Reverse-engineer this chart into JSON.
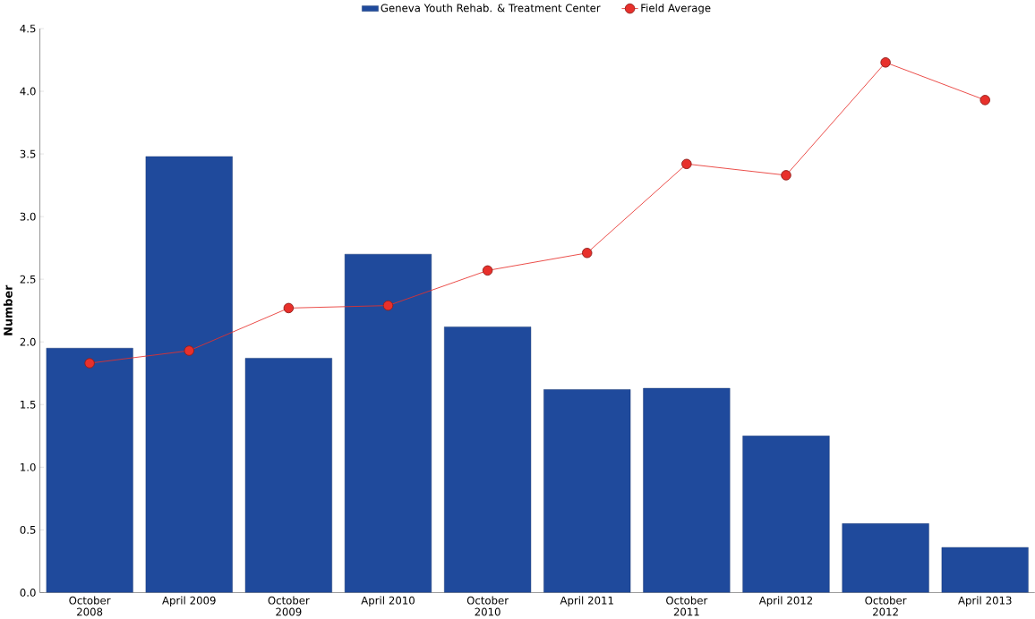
{
  "chart_data": {
    "type": "bar",
    "ylabel": "Number",
    "categories": [
      "October 2008",
      "April 2009",
      "October 2009",
      "April 2010",
      "October 2010",
      "April 2011",
      "October 2011",
      "April 2012",
      "October 2012",
      "April 2013"
    ],
    "series": [
      {
        "name": "Geneva Youth Rehab. & Treatment Center",
        "color": "#1f4a9c",
        "values": [
          1.95,
          3.48,
          1.87,
          2.7,
          2.12,
          1.62,
          1.63,
          1.25,
          0.55,
          0.36
        ]
      },
      {
        "name": "Field Average",
        "type": "line",
        "color": "#e8302b",
        "marker": "circle",
        "values": [
          1.83,
          1.93,
          2.27,
          2.29,
          2.57,
          2.71,
          3.42,
          3.33,
          4.23,
          3.93
        ]
      }
    ],
    "ylim": [
      0,
      4.5
    ],
    "yticks": [
      {
        "value": 0,
        "label": "0.0"
      },
      {
        "value": 0.5,
        "label": "0.5"
      },
      {
        "value": 1,
        "label": "1.0"
      },
      {
        "value": 1.5,
        "label": "1.5"
      },
      {
        "value": 2,
        "label": "2.0"
      },
      {
        "value": 2.5,
        "label": "2.5"
      },
      {
        "value": 3,
        "label": "3.0"
      },
      {
        "value": 3.5,
        "label": "3.5"
      },
      {
        "value": 4,
        "label": "4.0"
      },
      {
        "value": 4.5,
        "label": "4.5"
      }
    ],
    "legend": "top",
    "grid": false
  }
}
